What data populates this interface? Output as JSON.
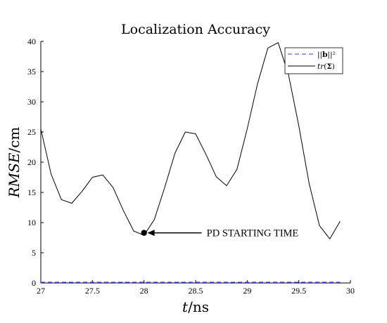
{
  "chart_data": {
    "type": "line",
    "title": "Localization Accuracy",
    "xlabel_var": "t",
    "xlabel_unit": "/ns",
    "ylabel_var": "RMSE",
    "ylabel_unit": "/cm",
    "xlim": [
      27,
      30
    ],
    "ylim": [
      0,
      40
    ],
    "xticks": [
      "27",
      "27.5",
      "28",
      "28.5",
      "29",
      "29.5",
      "30"
    ],
    "yticks": [
      "0",
      "5",
      "10",
      "15",
      "20",
      "25",
      "30",
      "35",
      "40"
    ],
    "grid": false,
    "legend_position": "top-right",
    "series": [
      {
        "name": "||b||²",
        "legend_label": "||b||²",
        "style": "dashed",
        "color": "#3a3adf",
        "x": [
          27,
          27.1,
          27.2,
          27.3,
          27.4,
          27.5,
          27.6,
          27.7,
          27.8,
          27.9,
          28,
          28.1,
          28.2,
          28.3,
          28.4,
          28.5,
          28.6,
          28.7,
          28.8,
          28.9,
          29,
          29.1,
          29.2,
          29.3,
          29.4,
          29.5,
          29.6,
          29.7,
          29.8,
          29.9
        ],
        "y": [
          0.1,
          0.1,
          0.1,
          0.1,
          0.1,
          0.1,
          0.1,
          0.1,
          0.1,
          0.1,
          0.1,
          0.1,
          0.1,
          0.1,
          0.1,
          0.1,
          0.1,
          0.1,
          0.1,
          0.1,
          0.1,
          0.1,
          0.1,
          0.1,
          0.1,
          0.1,
          0.1,
          0.1,
          0.1,
          0.1
        ]
      },
      {
        "name": "tr(Σ)",
        "legend_label": "tr(Σ)",
        "style": "solid",
        "color": "#000000",
        "x": [
          27,
          27.1,
          27.2,
          27.3,
          27.4,
          27.5,
          27.6,
          27.7,
          27.8,
          27.9,
          28,
          28.1,
          28.2,
          28.3,
          28.4,
          28.5,
          28.6,
          28.7,
          28.8,
          28.9,
          29,
          29.1,
          29.2,
          29.3,
          29.4,
          29.5,
          29.6,
          29.7,
          29.8,
          29.9
        ],
        "y": [
          25.5,
          18,
          13.8,
          13.2,
          15.2,
          17.5,
          17.9,
          15.8,
          12,
          8.6,
          7.9,
          10.5,
          15.8,
          21.5,
          25,
          24.7,
          21.3,
          17.6,
          16.1,
          18.8,
          25.5,
          33,
          38.9,
          39.8,
          34.5,
          26,
          16.5,
          9.5,
          7.3,
          10.2
        ]
      }
    ],
    "annotations": [
      {
        "text": "PD STARTING TIME",
        "point": [
          28,
          8.3
        ]
      }
    ]
  }
}
